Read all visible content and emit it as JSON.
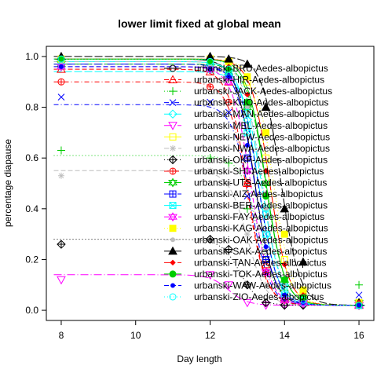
{
  "chart_data": {
    "type": "line",
    "title": "lower limit fixed at global mean",
    "xlabel": "Day length",
    "ylabel": "percentage diapause",
    "xlim": [
      7.6,
      16.4
    ],
    "ylim": [
      -0.04,
      1.04
    ],
    "x_ticks": [
      "8",
      "10",
      "12",
      "14",
      "16"
    ],
    "y_ticks": [
      "0.0",
      "0.2",
      "0.4",
      "0.6",
      "0.8",
      "1.0"
    ],
    "legend_position": "top-right",
    "lower_limit": 0.02,
    "series": [
      {
        "name": "urbanski-BRU-Aedes-albopictus",
        "color": "#000000",
        "pch": "circle",
        "upper": 0.99,
        "mid": 13.2,
        "slope": 4,
        "points": [
          [
            8,
            0.99
          ],
          [
            12,
            0.98
          ],
          [
            12.5,
            0.95
          ],
          [
            13,
            0.6
          ],
          [
            13.5,
            0.2
          ],
          [
            14,
            0.04
          ],
          [
            14.5,
            0.03
          ],
          [
            16,
            0.02
          ]
        ]
      },
      {
        "name": "urbanski-HIR-Aedes-albopictus",
        "color": "#ff0000",
        "pch": "triangle",
        "upper": 0.95,
        "mid": 13.0,
        "slope": 4,
        "points": [
          [
            8,
            0.95
          ],
          [
            12,
            0.94
          ],
          [
            12.5,
            0.9
          ],
          [
            13,
            0.5
          ],
          [
            13.5,
            0.18
          ],
          [
            14,
            0.05
          ],
          [
            14.5,
            0.03
          ],
          [
            16,
            0.02
          ]
        ]
      },
      {
        "name": "urbanski-JACK-Aedes-albopictus",
        "color": "#00cd00",
        "pch": "plus",
        "upper": 0.61,
        "mid": 13.3,
        "slope": 4,
        "points": [
          [
            8,
            0.63
          ],
          [
            12,
            0.6
          ],
          [
            12.5,
            0.58
          ],
          [
            13,
            0.4
          ],
          [
            13.5,
            0.2
          ],
          [
            14,
            0.08
          ],
          [
            14.5,
            0.05
          ],
          [
            16,
            0.1
          ]
        ]
      },
      {
        "name": "urbanski-KHO-Aedes-albopictus",
        "color": "#0000ff",
        "pch": "cross",
        "upper": 0.81,
        "mid": 13.1,
        "slope": 4,
        "points": [
          [
            8,
            0.84
          ],
          [
            12,
            0.82
          ],
          [
            12.5,
            0.78
          ],
          [
            13,
            0.45
          ],
          [
            13.5,
            0.15
          ],
          [
            14,
            0.05
          ],
          [
            14.5,
            0.04
          ],
          [
            16,
            0.06
          ]
        ]
      },
      {
        "name": "urbanski-MAN-Aedes-albopictus",
        "color": "#00ffff",
        "pch": "diamond",
        "upper": 0.94,
        "mid": 13.4,
        "slope": 4,
        "points": [
          [
            8,
            0.96
          ],
          [
            12,
            0.95
          ],
          [
            12.5,
            0.93
          ],
          [
            13,
            0.75
          ],
          [
            13.5,
            0.4
          ],
          [
            14,
            0.1
          ],
          [
            14.5,
            0.04
          ],
          [
            16,
            0.02
          ]
        ]
      },
      {
        "name": "urbanski-MEL-Aedes-albopictus",
        "color": "#ff00ff",
        "pch": "triangle-down",
        "upper": 0.14,
        "mid": 12.5,
        "slope": 4,
        "points": [
          [
            8,
            0.12
          ],
          [
            12,
            0.14
          ],
          [
            12.5,
            0.1
          ],
          [
            13,
            0.03
          ],
          [
            13.5,
            0.02
          ],
          [
            14,
            0.02
          ],
          [
            14.5,
            0.02
          ],
          [
            16,
            0.02
          ]
        ]
      },
      {
        "name": "urbanski-NEW-Aedes-albopictus",
        "color": "#ffff00",
        "pch": "square",
        "upper": 0.99,
        "mid": 13.6,
        "slope": 4,
        "points": [
          [
            8,
            0.99
          ],
          [
            12,
            0.99
          ],
          [
            12.5,
            0.98
          ],
          [
            13,
            0.9
          ],
          [
            13.5,
            0.6
          ],
          [
            14,
            0.2
          ],
          [
            14.5,
            0.06
          ],
          [
            16,
            0.03
          ]
        ]
      },
      {
        "name": "urbanski-NWA-Aedes-albopictus",
        "color": "#bebebe",
        "pch": "asterisk",
        "upper": 0.55,
        "mid": 13.0,
        "slope": 4,
        "points": [
          [
            8,
            0.53
          ],
          [
            12,
            0.55
          ],
          [
            12.5,
            0.5
          ],
          [
            13,
            0.3
          ],
          [
            13.5,
            0.1
          ],
          [
            14,
            0.04
          ],
          [
            14.5,
            0.03
          ],
          [
            16,
            0.02
          ]
        ]
      },
      {
        "name": "urbanski-OKF-Aedes-albopictus",
        "color": "#000000",
        "pch": "diamond-plus",
        "upper": 0.28,
        "mid": 12.8,
        "slope": 4,
        "points": [
          [
            8,
            0.26
          ],
          [
            12,
            0.28
          ],
          [
            12.5,
            0.24
          ],
          [
            13,
            0.1
          ],
          [
            13.5,
            0.03
          ],
          [
            14,
            0.02
          ],
          [
            14.5,
            0.02
          ],
          [
            16,
            0.02
          ]
        ]
      },
      {
        "name": "urbanski-SHI-Aedes-albopictus",
        "color": "#ff0000",
        "pch": "circle-plus",
        "upper": 0.9,
        "mid": 13.0,
        "slope": 4,
        "points": [
          [
            8,
            0.9
          ],
          [
            12,
            0.88
          ],
          [
            12.5,
            0.82
          ],
          [
            13,
            0.5
          ],
          [
            13.5,
            0.15
          ],
          [
            14,
            0.04
          ],
          [
            14.5,
            0.03
          ],
          [
            16,
            0.02
          ]
        ]
      },
      {
        "name": "urbanski-UTS-Aedes-albopictus",
        "color": "#00cd00",
        "pch": "star-of-david",
        "upper": 0.97,
        "mid": 13.5,
        "slope": 4,
        "points": [
          [
            8,
            0.97
          ],
          [
            12,
            0.96
          ],
          [
            12.5,
            0.94
          ],
          [
            13,
            0.8
          ],
          [
            13.5,
            0.5
          ],
          [
            14,
            0.12
          ],
          [
            14.5,
            0.05
          ],
          [
            16,
            0.03
          ]
        ]
      },
      {
        "name": "urbanski-AIZ-Aedes-albopictus",
        "color": "#0000ff",
        "pch": "square-plus",
        "upper": 0.97,
        "mid": 13.2,
        "slope": 4,
        "points": [
          [
            8,
            0.97
          ],
          [
            12,
            0.96
          ],
          [
            12.5,
            0.92
          ],
          [
            13,
            0.6
          ],
          [
            13.5,
            0.2
          ],
          [
            14,
            0.05
          ],
          [
            14.5,
            0.03
          ],
          [
            16,
            0.02
          ]
        ]
      },
      {
        "name": "urbanski-BER-Aedes-albopictus",
        "color": "#00ffff",
        "pch": "square-cross",
        "upper": 0.98,
        "mid": 13.3,
        "slope": 4,
        "points": [
          [
            8,
            0.98
          ],
          [
            12,
            0.97
          ],
          [
            12.5,
            0.94
          ],
          [
            13,
            0.7
          ],
          [
            13.5,
            0.3
          ],
          [
            14,
            0.06
          ],
          [
            14.5,
            0.03
          ],
          [
            16,
            0.02
          ]
        ]
      },
      {
        "name": "urbanski-FAY-Aedes-albopictus",
        "color": "#ff00ff",
        "pch": "triangle-pair",
        "upper": 0.96,
        "mid": 13.1,
        "slope": 4,
        "points": [
          [
            8,
            0.96
          ],
          [
            12,
            0.95
          ],
          [
            12.5,
            0.9
          ],
          [
            13,
            0.55
          ],
          [
            13.5,
            0.15
          ],
          [
            14,
            0.04
          ],
          [
            14.5,
            0.03
          ],
          [
            16,
            0.02
          ]
        ]
      },
      {
        "name": "urbanski-KAG-Aedes-albopictus",
        "color": "#ffff00",
        "pch": "filled-square",
        "upper": 0.99,
        "mid": 13.7,
        "slope": 4,
        "points": [
          [
            8,
            0.99
          ],
          [
            12,
            0.99
          ],
          [
            12.5,
            0.98
          ],
          [
            13,
            0.92
          ],
          [
            13.5,
            0.7
          ],
          [
            14,
            0.3
          ],
          [
            14.5,
            0.08
          ],
          [
            16,
            0.03
          ]
        ]
      },
      {
        "name": "urbanski-OAK-Aedes-albopictus",
        "color": "#bebebe",
        "pch": "filled-circle-small",
        "upper": 0.98,
        "mid": 13.4,
        "slope": 4,
        "points": [
          [
            8,
            0.98
          ],
          [
            12,
            0.97
          ],
          [
            12.5,
            0.95
          ],
          [
            13,
            0.8
          ],
          [
            13.5,
            0.4
          ],
          [
            14,
            0.1
          ],
          [
            14.5,
            0.04
          ],
          [
            16,
            0.02
          ]
        ]
      },
      {
        "name": "urbanski-SAK-Aedes-albopictus",
        "color": "#000000",
        "pch": "filled-triangle",
        "upper": 1.0,
        "mid": 13.9,
        "slope": 4,
        "points": [
          [
            8,
            1.0
          ],
          [
            12,
            1.0
          ],
          [
            12.5,
            0.99
          ],
          [
            13,
            0.97
          ],
          [
            13.5,
            0.8
          ],
          [
            14,
            0.4
          ],
          [
            14.5,
            0.19
          ],
          [
            16,
            0.03
          ]
        ]
      },
      {
        "name": "urbanski-TAN-Aedes-albopictus",
        "color": "#ff0000",
        "pch": "filled-diamond",
        "upper": 0.99,
        "mid": 13.6,
        "slope": 4,
        "points": [
          [
            8,
            0.99
          ],
          [
            12,
            0.98
          ],
          [
            12.5,
            0.96
          ],
          [
            13,
            0.85
          ],
          [
            13.5,
            0.55
          ],
          [
            14,
            0.18
          ],
          [
            14.5,
            0.06
          ],
          [
            16,
            0.03
          ]
        ]
      },
      {
        "name": "urbanski-TOK-Aedes-albopictus",
        "color": "#00cd00",
        "pch": "filled-circle",
        "upper": 0.99,
        "mid": 13.5,
        "slope": 4,
        "points": [
          [
            8,
            0.99
          ],
          [
            12,
            0.98
          ],
          [
            12.5,
            0.95
          ],
          [
            13,
            0.82
          ],
          [
            13.5,
            0.45
          ],
          [
            14,
            0.12
          ],
          [
            14.5,
            0.05
          ],
          [
            16,
            0.02
          ]
        ]
      },
      {
        "name": "urbanski-WAW-Aedes-albopictus",
        "color": "#0000ff",
        "pch": "filled-circle-small",
        "upper": 0.96,
        "mid": 13.3,
        "slope": 4,
        "points": [
          [
            8,
            0.96
          ],
          [
            12,
            0.95
          ],
          [
            12.5,
            0.92
          ],
          [
            13,
            0.65
          ],
          [
            13.5,
            0.25
          ],
          [
            14,
            0.06
          ],
          [
            14.5,
            0.03
          ],
          [
            16,
            0.02
          ]
        ]
      },
      {
        "name": "urbanski-ZIO-Aedes-albopictus",
        "color": "#00ffff",
        "pch": "circle",
        "upper": 0.99,
        "mid": 13.4,
        "slope": 4,
        "points": [
          [
            8,
            0.99
          ],
          [
            12,
            0.98
          ],
          [
            12.5,
            0.95
          ],
          [
            13,
            0.78
          ],
          [
            13.5,
            0.38
          ],
          [
            14,
            0.09
          ],
          [
            14.5,
            0.04
          ],
          [
            16,
            0.02
          ]
        ]
      }
    ]
  }
}
